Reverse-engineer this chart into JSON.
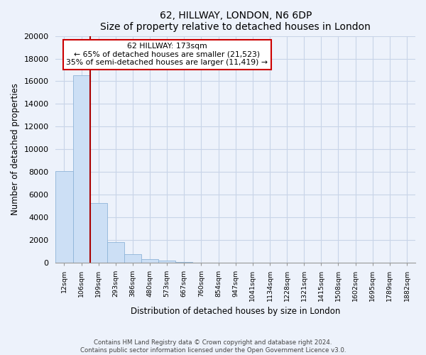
{
  "title": "62, HILLWAY, LONDON, N6 6DP",
  "subtitle": "Size of property relative to detached houses in London",
  "xlabel": "Distribution of detached houses by size in London",
  "ylabel": "Number of detached properties",
  "bar_labels": [
    "12sqm",
    "106sqm",
    "199sqm",
    "293sqm",
    "386sqm",
    "480sqm",
    "573sqm",
    "667sqm",
    "760sqm",
    "854sqm",
    "947sqm",
    "1041sqm",
    "1134sqm",
    "1228sqm",
    "1321sqm",
    "1415sqm",
    "1508sqm",
    "1602sqm",
    "1695sqm",
    "1789sqm",
    "1882sqm"
  ],
  "bar_values": [
    8100,
    16500,
    5300,
    1800,
    750,
    300,
    200,
    100,
    0,
    0,
    0,
    0,
    0,
    0,
    0,
    0,
    0,
    0,
    0,
    0,
    0
  ],
  "bar_color": "#ccdff5",
  "bar_edge_color": "#8eb4d8",
  "vline_x_after_bar": 1,
  "annotation_title": "62 HILLWAY: 173sqm",
  "annotation_line1": "← 65% of detached houses are smaller (21,523)",
  "annotation_line2": "35% of semi-detached houses are larger (11,419) →",
  "vline_color": "#aa0000",
  "box_facecolor": "#ffffff",
  "box_edgecolor": "#cc0000",
  "ylim": [
    0,
    20000
  ],
  "yticks": [
    0,
    2000,
    4000,
    6000,
    8000,
    10000,
    12000,
    14000,
    16000,
    18000,
    20000
  ],
  "footer_line1": "Contains HM Land Registry data © Crown copyright and database right 2024.",
  "footer_line2": "Contains public sector information licensed under the Open Government Licence v3.0.",
  "bg_color": "#edf2fb",
  "plot_bg_color": "#edf2fb",
  "grid_color": "#c8d4e8"
}
